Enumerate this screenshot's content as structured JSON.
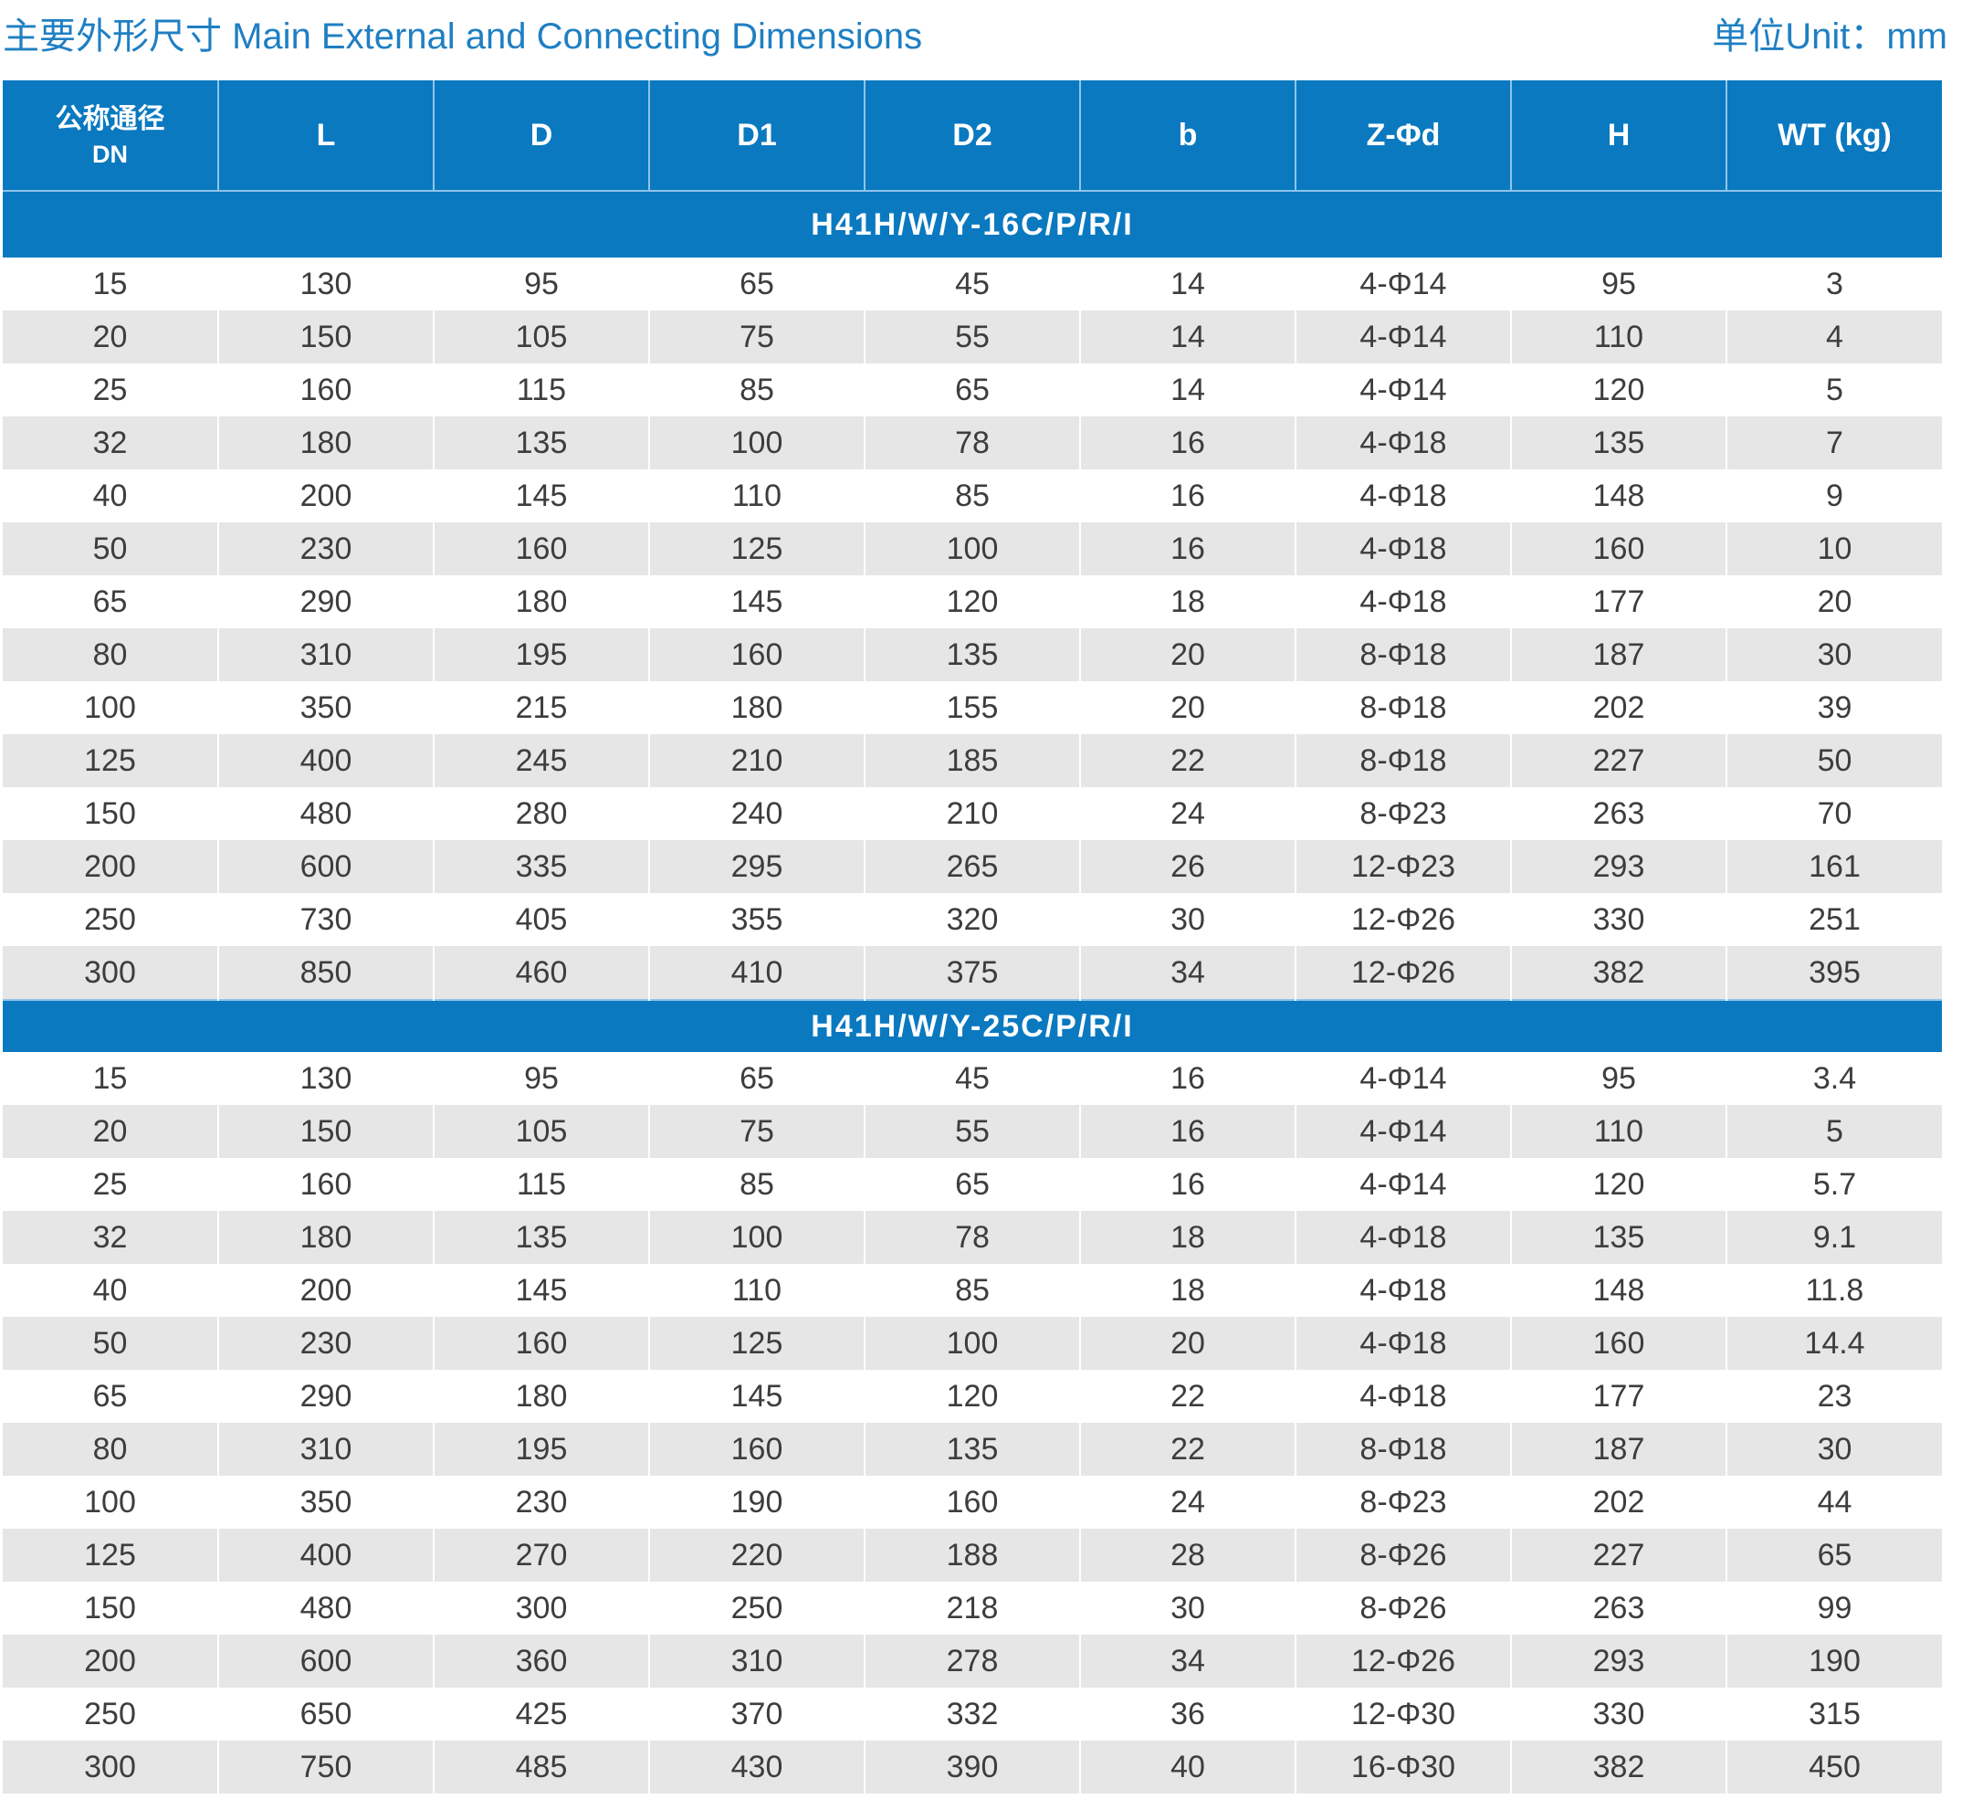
{
  "header": {
    "title": "主要外形尺寸 Main External and Connecting Dimensions",
    "unit": "单位Unit：mm"
  },
  "table": {
    "columns": [
      {
        "zh": "公称通径",
        "en": "DN"
      },
      {
        "label": "L"
      },
      {
        "label": "D"
      },
      {
        "label": "D1"
      },
      {
        "label": "D2"
      },
      {
        "label": "b"
      },
      {
        "label": "Z-Φd"
      },
      {
        "label": "H"
      },
      {
        "label": "WT (kg)"
      }
    ],
    "groups": [
      {
        "title": "H41H/W/Y-16C/P/R/I",
        "rows": [
          [
            "15",
            "130",
            "95",
            "65",
            "45",
            "14",
            "4-Φ14",
            "95",
            "3"
          ],
          [
            "20",
            "150",
            "105",
            "75",
            "55",
            "14",
            "4-Φ14",
            "110",
            "4"
          ],
          [
            "25",
            "160",
            "115",
            "85",
            "65",
            "14",
            "4-Φ14",
            "120",
            "5"
          ],
          [
            "32",
            "180",
            "135",
            "100",
            "78",
            "16",
            "4-Φ18",
            "135",
            "7"
          ],
          [
            "40",
            "200",
            "145",
            "110",
            "85",
            "16",
            "4-Φ18",
            "148",
            "9"
          ],
          [
            "50",
            "230",
            "160",
            "125",
            "100",
            "16",
            "4-Φ18",
            "160",
            "10"
          ],
          [
            "65",
            "290",
            "180",
            "145",
            "120",
            "18",
            "4-Φ18",
            "177",
            "20"
          ],
          [
            "80",
            "310",
            "195",
            "160",
            "135",
            "20",
            "8-Φ18",
            "187",
            "30"
          ],
          [
            "100",
            "350",
            "215",
            "180",
            "155",
            "20",
            "8-Φ18",
            "202",
            "39"
          ],
          [
            "125",
            "400",
            "245",
            "210",
            "185",
            "22",
            "8-Φ18",
            "227",
            "50"
          ],
          [
            "150",
            "480",
            "280",
            "240",
            "210",
            "24",
            "8-Φ23",
            "263",
            "70"
          ],
          [
            "200",
            "600",
            "335",
            "295",
            "265",
            "26",
            "12-Φ23",
            "293",
            "161"
          ],
          [
            "250",
            "730",
            "405",
            "355",
            "320",
            "30",
            "12-Φ26",
            "330",
            "251"
          ],
          [
            "300",
            "850",
            "460",
            "410",
            "375",
            "34",
            "12-Φ26",
            "382",
            "395"
          ]
        ]
      },
      {
        "title": "H41H/W/Y-25C/P/R/I",
        "rows": [
          [
            "15",
            "130",
            "95",
            "65",
            "45",
            "16",
            "4-Φ14",
            "95",
            "3.4"
          ],
          [
            "20",
            "150",
            "105",
            "75",
            "55",
            "16",
            "4-Φ14",
            "110",
            "5"
          ],
          [
            "25",
            "160",
            "115",
            "85",
            "65",
            "16",
            "4-Φ14",
            "120",
            "5.7"
          ],
          [
            "32",
            "180",
            "135",
            "100",
            "78",
            "18",
            "4-Φ18",
            "135",
            "9.1"
          ],
          [
            "40",
            "200",
            "145",
            "110",
            "85",
            "18",
            "4-Φ18",
            "148",
            "11.8"
          ],
          [
            "50",
            "230",
            "160",
            "125",
            "100",
            "20",
            "4-Φ18",
            "160",
            "14.4"
          ],
          [
            "65",
            "290",
            "180",
            "145",
            "120",
            "22",
            "4-Φ18",
            "177",
            "23"
          ],
          [
            "80",
            "310",
            "195",
            "160",
            "135",
            "22",
            "8-Φ18",
            "187",
            "30"
          ],
          [
            "100",
            "350",
            "230",
            "190",
            "160",
            "24",
            "8-Φ23",
            "202",
            "44"
          ],
          [
            "125",
            "400",
            "270",
            "220",
            "188",
            "28",
            "8-Φ26",
            "227",
            "65"
          ],
          [
            "150",
            "480",
            "300",
            "250",
            "218",
            "30",
            "8-Φ26",
            "263",
            "99"
          ],
          [
            "200",
            "600",
            "360",
            "310",
            "278",
            "34",
            "12-Φ26",
            "293",
            "190"
          ],
          [
            "250",
            "650",
            "425",
            "370",
            "332",
            "36",
            "12-Φ30",
            "330",
            "315"
          ],
          [
            "300",
            "750",
            "485",
            "430",
            "390",
            "40",
            "16-Φ30",
            "382",
            "450"
          ]
        ]
      }
    ]
  },
  "colors": {
    "accent": "#0a79c0",
    "title_text": "#1f7fc3",
    "row_alt": "#e6e6e6"
  }
}
